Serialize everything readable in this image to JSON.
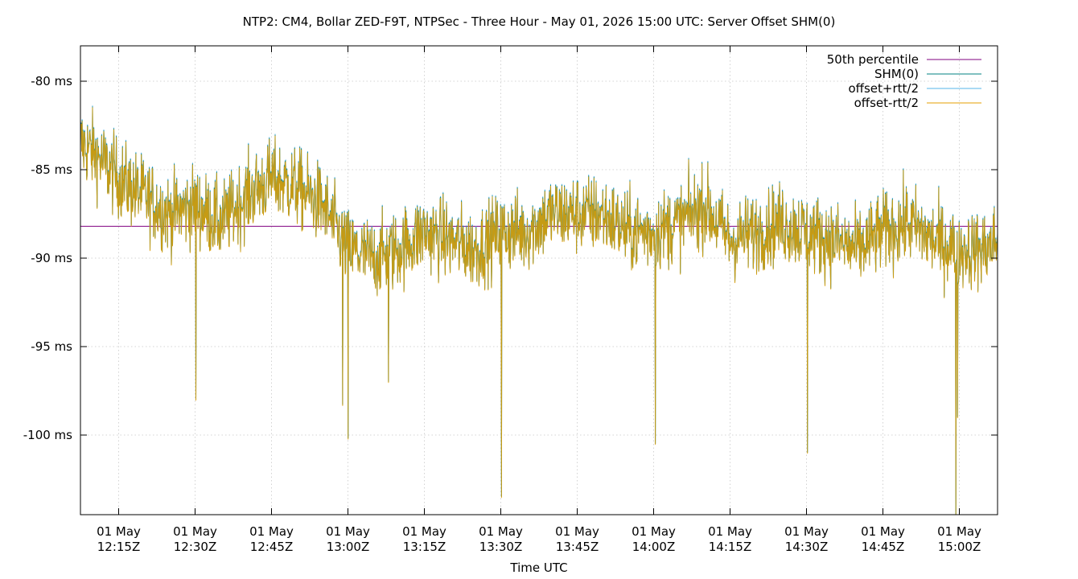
{
  "chart_data": {
    "type": "line",
    "title": "NTP2: CM4, Bollar ZED-F9T, NTPSec - Three Hour - May 01, 2026 15:00 UTC: Server Offset SHM(0)",
    "xlabel": "Time UTC",
    "ylabel": "",
    "x_range": [
      "2026-05-01T12:07:30Z",
      "2026-05-01T15:07:30Z"
    ],
    "ylim": [
      -104.5,
      -78
    ],
    "grid": true,
    "legend_position": "top-right",
    "y_ticks": [
      {
        "value": -80,
        "label": "-80 ms"
      },
      {
        "value": -85,
        "label": "-85 ms"
      },
      {
        "value": -90,
        "label": "-90 ms"
      },
      {
        "value": -95,
        "label": "-95 ms"
      },
      {
        "value": -100,
        "label": "-100 ms"
      }
    ],
    "x_ticks": [
      {
        "time": "2026-05-01T12:15:00Z",
        "line1": "01 May",
        "line2": "12:15Z"
      },
      {
        "time": "2026-05-01T12:30:00Z",
        "line1": "01 May",
        "line2": "12:30Z"
      },
      {
        "time": "2026-05-01T12:45:00Z",
        "line1": "01 May",
        "line2": "12:45Z"
      },
      {
        "time": "2026-05-01T13:00:00Z",
        "line1": "01 May",
        "line2": "13:00Z"
      },
      {
        "time": "2026-05-01T13:15:00Z",
        "line1": "01 May",
        "line2": "13:15Z"
      },
      {
        "time": "2026-05-01T13:30:00Z",
        "line1": "01 May",
        "line2": "13:30Z"
      },
      {
        "time": "2026-05-01T13:45:00Z",
        "line1": "01 May",
        "line2": "13:45Z"
      },
      {
        "time": "2026-05-01T14:00:00Z",
        "line1": "01 May",
        "line2": "14:00Z"
      },
      {
        "time": "2026-05-01T14:15:00Z",
        "line1": "01 May",
        "line2": "14:15Z"
      },
      {
        "time": "2026-05-01T14:30:00Z",
        "line1": "01 May",
        "line2": "14:30Z"
      },
      {
        "time": "2026-05-01T14:45:00Z",
        "line1": "01 May",
        "line2": "14:45Z"
      },
      {
        "time": "2026-05-01T15:00:00Z",
        "line1": "01 May",
        "line2": "15:00Z"
      }
    ],
    "series": [
      {
        "name": "50th percentile",
        "color": "#800080",
        "style": "hline",
        "value": -88.2
      },
      {
        "name": "SHM(0)",
        "color": "#008080",
        "x": [
          "2026-05-01T12:07:30Z",
          "2026-05-01T12:10:00Z",
          "2026-05-01T12:15:00Z",
          "2026-05-01T12:20:00Z",
          "2026-05-01T12:25:00Z",
          "2026-05-01T12:30:00Z",
          "2026-05-01T12:35:00Z",
          "2026-05-01T12:40:00Z",
          "2026-05-01T12:45:00Z",
          "2026-05-01T12:50:00Z",
          "2026-05-01T12:55:00Z",
          "2026-05-01T13:00:00Z",
          "2026-05-01T13:05:00Z",
          "2026-05-01T13:10:00Z",
          "2026-05-01T13:15:00Z",
          "2026-05-01T13:20:00Z",
          "2026-05-01T13:25:00Z",
          "2026-05-01T13:30:00Z",
          "2026-05-01T13:35:00Z",
          "2026-05-01T13:40:00Z",
          "2026-05-01T13:45:00Z",
          "2026-05-01T13:50:00Z",
          "2026-05-01T13:55:00Z",
          "2026-05-01T14:00:00Z",
          "2026-05-01T14:05:00Z",
          "2026-05-01T14:10:00Z",
          "2026-05-01T14:15:00Z",
          "2026-05-01T14:20:00Z",
          "2026-05-01T14:25:00Z",
          "2026-05-01T14:30:00Z",
          "2026-05-01T14:35:00Z",
          "2026-05-01T14:40:00Z",
          "2026-05-01T14:45:00Z",
          "2026-05-01T14:50:00Z",
          "2026-05-01T14:55:00Z",
          "2026-05-01T15:00:00Z",
          "2026-05-01T15:05:00Z",
          "2026-05-01T15:07:30Z"
        ],
        "values": [
          -83.5,
          -84.0,
          -85.5,
          -86.5,
          -87.5,
          -87.0,
          -88.0,
          -86.5,
          -85.5,
          -86.0,
          -87.0,
          -89.5,
          -90.0,
          -89.5,
          -88.5,
          -89.0,
          -89.5,
          -88.5,
          -88.5,
          -87.5,
          -87.5,
          -87.5,
          -88.5,
          -88.5,
          -88.0,
          -87.0,
          -89.0,
          -88.5,
          -88.0,
          -88.5,
          -89.0,
          -89.5,
          -88.5,
          -88.0,
          -89.0,
          -89.5,
          -89.5,
          -89.0
        ]
      },
      {
        "name": "offset+rtt/2",
        "color": "#56b4e9",
        "data": "same as SHM(0)"
      },
      {
        "name": "offset-rtt/2",
        "color": "#e69f00",
        "data": "same as SHM(0)"
      }
    ],
    "noise_amplitude_ms": 1.6,
    "spikes": [
      {
        "time": "2026-05-01T12:30:10Z",
        "value": -98.0
      },
      {
        "time": "2026-05-01T12:59:00Z",
        "value": -98.3
      },
      {
        "time": "2026-05-01T13:00:00Z",
        "value": -100.2
      },
      {
        "time": "2026-05-01T13:08:00Z",
        "value": -97.0
      },
      {
        "time": "2026-05-01T13:30:10Z",
        "value": -103.5
      },
      {
        "time": "2026-05-01T14:00:20Z",
        "value": -100.5
      },
      {
        "time": "2026-05-01T14:30:10Z",
        "value": -101.0
      },
      {
        "time": "2026-05-01T14:59:20Z",
        "value": -104.5
      },
      {
        "time": "2026-05-01T14:59:40Z",
        "value": -99.0
      }
    ]
  }
}
